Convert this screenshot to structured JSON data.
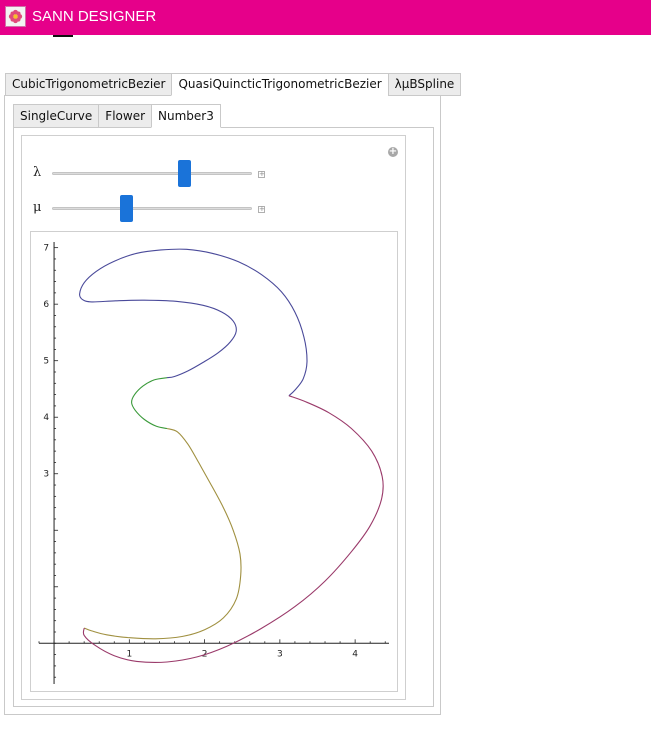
{
  "window": {
    "title": "SANN DESIGNER"
  },
  "outer_tabs": [
    {
      "label": "CubicTrigonometricBezier",
      "active": false
    },
    {
      "label": "QuasiQuincticTrigonometricBezier",
      "active": true
    },
    {
      "label": "λμBSpline",
      "active": false
    }
  ],
  "inner_tabs": [
    {
      "label": "SingleCurve",
      "active": false
    },
    {
      "label": "Flower",
      "active": false
    },
    {
      "label": "Number3",
      "active": true
    }
  ],
  "sliders": [
    {
      "label": "λ",
      "value": 0.66
    },
    {
      "label": "μ",
      "value": 0.37
    }
  ],
  "icons": {
    "app": "flower-icon",
    "add": "plus-circle-icon"
  },
  "colors": {
    "titlebar": "#e6008a",
    "slider_thumb": "#1a73d9",
    "series": [
      "#4a4a9a",
      "#3a9a3a",
      "#a09040",
      "#9a3a6a"
    ]
  },
  "chart_data": {
    "type": "line",
    "xlim": [
      -0.2,
      4.45
    ],
    "ylim": [
      -0.72,
      7.1
    ],
    "x_ticks": [
      "1",
      "2",
      "3",
      "4"
    ],
    "y_ticks": [
      "3",
      "4",
      "5",
      "6",
      "7"
    ],
    "series": [
      {
        "color": "#4a4a9a",
        "points": [
          [
            1.5,
            4.7
          ],
          [
            1.6,
            4.72
          ],
          [
            1.78,
            4.82
          ],
          [
            1.98,
            4.97
          ],
          [
            2.18,
            5.14
          ],
          [
            2.34,
            5.33
          ],
          [
            2.42,
            5.52
          ],
          [
            2.38,
            5.7
          ],
          [
            2.23,
            5.86
          ],
          [
            1.98,
            5.98
          ],
          [
            1.62,
            6.05
          ],
          [
            1.2,
            6.07
          ],
          [
            0.82,
            6.06
          ],
          [
            0.5,
            6.04
          ],
          [
            0.38,
            6.08
          ],
          [
            0.34,
            6.18
          ],
          [
            0.4,
            6.38
          ],
          [
            0.56,
            6.58
          ],
          [
            0.8,
            6.76
          ],
          [
            1.1,
            6.9
          ],
          [
            1.42,
            6.96
          ],
          [
            1.76,
            6.97
          ],
          [
            2.1,
            6.9
          ],
          [
            2.45,
            6.75
          ],
          [
            2.76,
            6.52
          ],
          [
            3.02,
            6.22
          ],
          [
            3.2,
            5.86
          ],
          [
            3.32,
            5.42
          ],
          [
            3.36,
            4.98
          ],
          [
            3.31,
            4.68
          ],
          [
            3.2,
            4.48
          ],
          [
            3.12,
            4.38
          ]
        ]
      },
      {
        "color": "#3a9a3a",
        "points": [
          [
            1.5,
            3.8
          ],
          [
            1.36,
            3.84
          ],
          [
            1.2,
            3.96
          ],
          [
            1.08,
            4.12
          ],
          [
            1.03,
            4.26
          ],
          [
            1.07,
            4.4
          ],
          [
            1.18,
            4.55
          ],
          [
            1.33,
            4.66
          ],
          [
            1.5,
            4.7
          ]
        ]
      },
      {
        "color": "#a09040",
        "points": [
          [
            0.4,
            0.27
          ],
          [
            0.5,
            0.22
          ],
          [
            0.7,
            0.15
          ],
          [
            1.0,
            0.1
          ],
          [
            1.35,
            0.08
          ],
          [
            1.7,
            0.12
          ],
          [
            2.0,
            0.24
          ],
          [
            2.25,
            0.45
          ],
          [
            2.42,
            0.78
          ],
          [
            2.48,
            1.2
          ],
          [
            2.47,
            1.58
          ],
          [
            2.38,
            2.0
          ],
          [
            2.25,
            2.4
          ],
          [
            2.08,
            2.82
          ],
          [
            1.92,
            3.2
          ],
          [
            1.78,
            3.52
          ],
          [
            1.64,
            3.74
          ],
          [
            1.5,
            3.8
          ]
        ]
      },
      {
        "color": "#9a3a6a",
        "points": [
          [
            3.12,
            4.38
          ],
          [
            3.35,
            4.27
          ],
          [
            3.65,
            4.08
          ],
          [
            3.95,
            3.8
          ],
          [
            4.22,
            3.4
          ],
          [
            4.36,
            2.95
          ],
          [
            4.35,
            2.55
          ],
          [
            4.2,
            2.08
          ],
          [
            3.95,
            1.62
          ],
          [
            3.6,
            1.1
          ],
          [
            3.2,
            0.65
          ],
          [
            2.75,
            0.26
          ],
          [
            2.3,
            -0.05
          ],
          [
            1.9,
            -0.24
          ],
          [
            1.5,
            -0.33
          ],
          [
            1.1,
            -0.32
          ],
          [
            0.8,
            -0.22
          ],
          [
            0.55,
            -0.04
          ],
          [
            0.4,
            0.14
          ],
          [
            0.4,
            0.27
          ]
        ]
      }
    ]
  }
}
